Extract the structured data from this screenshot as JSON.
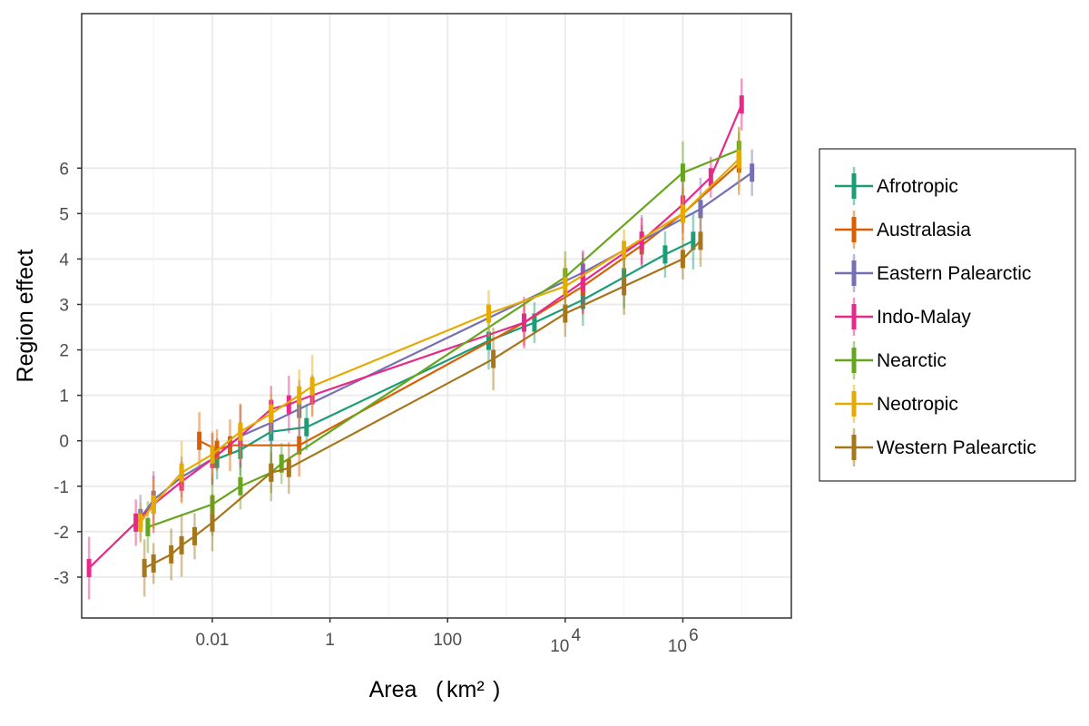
{
  "chart_data": {
    "type": "line",
    "xlabel": "Area",
    "xlabel_unit": "km²",
    "ylabel": "Region effect",
    "x_scale": "log10",
    "x_ticks": [
      {
        "value": 0.01,
        "label": "0.01",
        "base": "",
        "exp": ""
      },
      {
        "value": 1,
        "label": "1",
        "base": "",
        "exp": ""
      },
      {
        "value": 100,
        "label": "100",
        "base": "",
        "exp": ""
      },
      {
        "value": 10000,
        "label": "",
        "base": "10",
        "exp": "4"
      },
      {
        "value": 1000000,
        "label": "",
        "base": "10",
        "exp": "6"
      }
    ],
    "x_grid_minor": [
      0.001,
      0.1,
      10,
      1000,
      100000,
      10000000
    ],
    "y_ticks": [
      -3,
      -2,
      -1,
      0,
      1,
      2,
      3,
      4,
      5,
      6
    ],
    "ylim": [
      -3.9,
      9.4
    ],
    "xlim": [
      6e-05,
      70000000
    ],
    "grid": true,
    "legend_position": "right",
    "series": [
      {
        "name": "Afrotropic",
        "color": "#1B9E77",
        "x": [
          0.012,
          0.03,
          0.1,
          0.4,
          500,
          3000,
          20000,
          100000,
          500000,
          1500000
        ],
        "y": [
          -0.4,
          -0.2,
          0.2,
          0.3,
          2.2,
          2.6,
          3.1,
          3.6,
          4.1,
          4.4
        ]
      },
      {
        "name": "Australasia",
        "color": "#D95F02",
        "x": [
          0.006,
          0.012,
          0.02,
          0.3,
          2000,
          20000,
          200000,
          1000000,
          9000000
        ],
        "y": [
          0.0,
          -0.2,
          -0.1,
          -0.1,
          2.6,
          3.4,
          4.3,
          5.0,
          6.1
        ]
      },
      {
        "name": "Eastern Palearctic",
        "color": "#7570B3",
        "x": [
          0.0006,
          0.001,
          0.003,
          0.01,
          0.03,
          0.1,
          0.3,
          20000,
          200000,
          2000000,
          15000000
        ],
        "y": [
          -1.7,
          -1.3,
          -0.8,
          -0.4,
          0.1,
          0.4,
          0.7,
          3.7,
          4.4,
          5.1,
          5.9
        ]
      },
      {
        "name": "Indo-Malay",
        "color": "#E7298A",
        "x": [
          8e-05,
          0.0005,
          0.001,
          0.003,
          0.01,
          0.03,
          0.1,
          0.2,
          0.5,
          2000,
          20000,
          200000,
          1000000,
          3000000,
          10000000
        ],
        "y": [
          -2.8,
          -1.8,
          -1.4,
          -0.9,
          -0.4,
          0.1,
          0.7,
          0.8,
          1.0,
          2.6,
          3.5,
          4.4,
          5.2,
          5.8,
          7.4
        ]
      },
      {
        "name": "Nearctic",
        "color": "#66A61E",
        "x": [
          0.0008,
          0.01,
          0.03,
          0.1,
          0.15,
          10000,
          1000000,
          9000000
        ],
        "y": [
          -1.9,
          -1.4,
          -1.0,
          -0.7,
          -0.5,
          3.6,
          5.9,
          6.4
        ]
      },
      {
        "name": "Neotropic",
        "color": "#E6AB02",
        "x": [
          0.0006,
          0.001,
          0.003,
          0.01,
          0.03,
          0.1,
          0.3,
          0.5,
          500,
          10000,
          100000,
          1000000,
          9000000
        ],
        "y": [
          -1.8,
          -1.4,
          -0.7,
          -0.3,
          0.2,
          0.6,
          1.0,
          1.2,
          2.8,
          3.4,
          4.2,
          5.0,
          6.2
        ]
      },
      {
        "name": "Western Palearctic",
        "color": "#A6761D",
        "x": [
          0.0007,
          0.001,
          0.002,
          0.003,
          0.005,
          0.01,
          0.1,
          0.2,
          600,
          10000,
          100000,
          1000000,
          2000000
        ],
        "y": [
          -2.8,
          -2.7,
          -2.5,
          -2.3,
          -2.1,
          -1.8,
          -0.7,
          -0.6,
          1.8,
          2.8,
          3.4,
          4.0,
          4.4
        ]
      }
    ]
  }
}
